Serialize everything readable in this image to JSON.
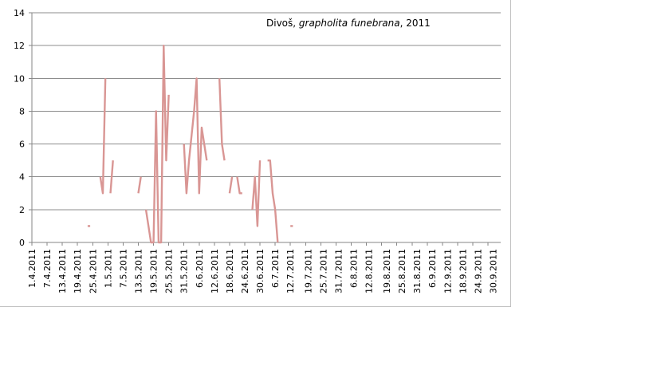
{
  "chart_data": {
    "type": "line",
    "title": "Divoš, grapholita funebrana, 2011",
    "title_parts": {
      "pre": "Divoš, ",
      "italic": "grapholita funebrana",
      "post": ", 2011"
    },
    "ylim": [
      0,
      14
    ],
    "yticks": [
      0,
      2,
      4,
      6,
      8,
      10,
      12,
      14
    ],
    "grid": true,
    "x_start": "1.4.2011",
    "x_end": "3.10.2011",
    "x_tick_labels": [
      "1.4.2011",
      "7.4.2011",
      "13.4.2011",
      "19.4.2011",
      "25.4.2011",
      "1.5.2011",
      "7.5.2011",
      "13.5.2011",
      "19.5.2011",
      "25.5.2011",
      "31.5.2011",
      "6.6.2011",
      "12.6.2011",
      "18.6.2011",
      "24.6.2011",
      "30.6.2011",
      "6.7.2011",
      "12.7.2011",
      "19.7.2011",
      "25.7.2011",
      "31.7.2011",
      "6.8.2011",
      "12.8.2011",
      "19.8.2011",
      "25.8.2011",
      "31.8.2011",
      "6.9.2011",
      "12.9.2011",
      "18.9.2011",
      "24.9.2011",
      "30.9.2011"
    ],
    "series": [
      {
        "color": "#d99694",
        "segments": [
          [
            [
              "23.4.2011",
              1
            ],
            [
              "24.4.2011",
              1
            ]
          ],
          [
            [
              "28.4.2011",
              4
            ],
            [
              "29.4.2011",
              3
            ],
            [
              "30.4.2011",
              10
            ]
          ],
          [
            [
              "2.5.2011",
              3
            ],
            [
              "3.5.2011",
              5
            ]
          ],
          [
            [
              "13.5.2011",
              3
            ],
            [
              "14.5.2011",
              4
            ]
          ],
          [
            [
              "16.5.2011",
              2
            ],
            [
              "18.5.2011",
              0
            ],
            [
              "19.5.2011",
              0
            ],
            [
              "20.5.2011",
              8
            ],
            [
              "21.5.2011",
              0
            ],
            [
              "22.5.2011",
              0
            ],
            [
              "23.5.2011",
              12
            ],
            [
              "24.5.2011",
              5
            ],
            [
              "25.5.2011",
              9
            ]
          ],
          [
            [
              "31.5.2011",
              6
            ],
            [
              "1.6.2011",
              3
            ],
            [
              "2.6.2011",
              5
            ],
            [
              "4.6.2011",
              8
            ],
            [
              "5.6.2011",
              10
            ],
            [
              "6.6.2011",
              3
            ],
            [
              "7.6.2011",
              7
            ],
            [
              "8.6.2011",
              6
            ],
            [
              "9.6.2011",
              5
            ]
          ],
          [
            [
              "14.6.2011",
              10
            ],
            [
              "15.6.2011",
              6
            ],
            [
              "16.6.2011",
              5
            ]
          ],
          [
            [
              "18.6.2011",
              3
            ],
            [
              "19.6.2011",
              4
            ]
          ],
          [
            [
              "21.6.2011",
              4
            ],
            [
              "22.6.2011",
              3
            ],
            [
              "23.6.2011",
              3
            ]
          ],
          [
            [
              "27.6.2011",
              2
            ],
            [
              "28.6.2011",
              4
            ],
            [
              "29.6.2011",
              1
            ],
            [
              "30.6.2011",
              5
            ]
          ],
          [
            [
              "3.7.2011",
              5
            ],
            [
              "4.7.2011",
              5
            ],
            [
              "5.7.2011",
              3
            ],
            [
              "6.7.2011",
              2
            ],
            [
              "7.7.2011",
              0
            ]
          ],
          [
            [
              "12.7.2011",
              1
            ],
            [
              "13.7.2011",
              1
            ]
          ]
        ]
      }
    ]
  }
}
